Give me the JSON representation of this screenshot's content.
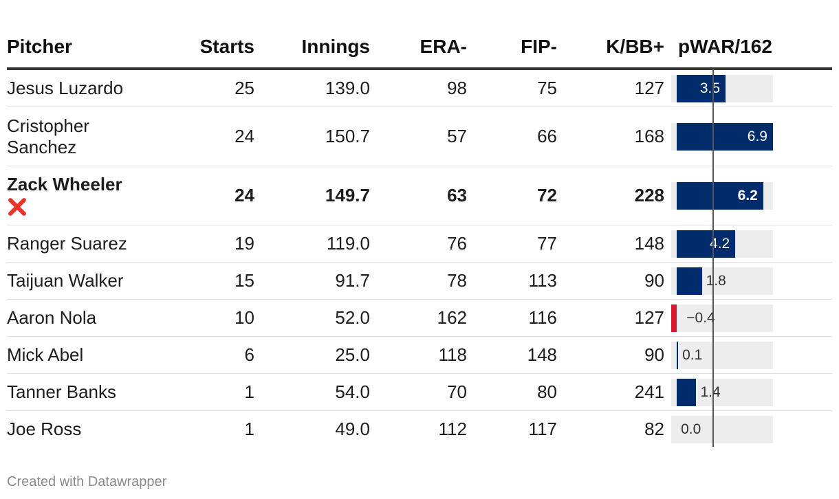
{
  "table": {
    "headers": {
      "pitcher": "Pitcher",
      "starts": "Starts",
      "innings": "Innings",
      "era": "ERA-",
      "fip": "FIP-",
      "kbb": "K/BB+",
      "pwar": "pWAR/162"
    },
    "rows": [
      {
        "name": "Jesus Luzardo",
        "starts": "25",
        "innings": "139.0",
        "era": "98",
        "fip": "75",
        "kbb": "127",
        "pwar_label": "3.5",
        "pwar": 3.5
      },
      {
        "name": "Cristopher Sanchez",
        "starts": "24",
        "innings": "150.7",
        "era": "57",
        "fip": "66",
        "kbb": "168",
        "pwar_label": "6.9",
        "pwar": 6.9
      },
      {
        "name": "Zack Wheeler",
        "starts": "24",
        "innings": "149.7",
        "era": "63",
        "fip": "72",
        "kbb": "228",
        "pwar_label": "6.2",
        "pwar": 6.2,
        "bold": true,
        "icon": "cross-mark-icon"
      },
      {
        "name": "Ranger Suarez",
        "starts": "19",
        "innings": "119.0",
        "era": "76",
        "fip": "77",
        "kbb": "148",
        "pwar_label": "4.2",
        "pwar": 4.2
      },
      {
        "name": "Taijuan Walker",
        "starts": "15",
        "innings": "91.7",
        "era": "78",
        "fip": "113",
        "kbb": "90",
        "pwar_label": "1.8",
        "pwar": 1.8
      },
      {
        "name": "Aaron Nola",
        "starts": "10",
        "innings": "52.0",
        "era": "162",
        "fip": "116",
        "kbb": "127",
        "pwar_label": "−0.4",
        "pwar": -0.4
      },
      {
        "name": "Mick Abel",
        "starts": "6",
        "innings": "25.0",
        "era": "118",
        "fip": "148",
        "kbb": "90",
        "pwar_label": "0.1",
        "pwar": 0.1
      },
      {
        "name": "Tanner Banks",
        "starts": "1",
        "innings": "54.0",
        "era": "70",
        "fip": "80",
        "kbb": "241",
        "pwar_label": "1.4",
        "pwar": 1.4
      },
      {
        "name": "Joe Ross",
        "starts": "1",
        "innings": "49.0",
        "era": "112",
        "fip": "117",
        "kbb": "82",
        "pwar_label": "0.0",
        "pwar": 0.0
      }
    ]
  },
  "chart_data": {
    "type": "table",
    "columns": [
      "Pitcher",
      "Starts",
      "Innings",
      "ERA-",
      "FIP-",
      "K/BB+",
      "pWAR/162"
    ],
    "bar_column": "pWAR/162",
    "bar_range": [
      -0.4,
      6.9
    ],
    "colors": {
      "positive": "#012c6c",
      "negative": "#d7192f",
      "track": "#ededed"
    }
  },
  "footer": {
    "credit": "Created with Datawrapper"
  }
}
